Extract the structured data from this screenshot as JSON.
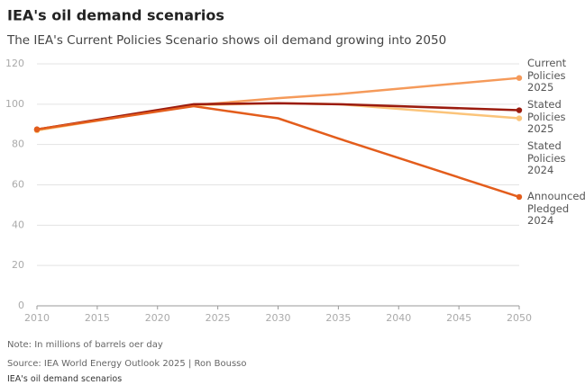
{
  "chart_data": {
    "type": "line",
    "title": "IEA's oil demand scenarios",
    "subtitle": "The IEA's Current Policies Scenario shows oil demand growing into 2050",
    "x": [
      2010,
      2023,
      2030,
      2035,
      2050
    ],
    "series": [
      {
        "name": "Current Policies 2025",
        "color": "#f59a5a",
        "values": [
          87.5,
          99.5,
          103,
          105,
          113
        ]
      },
      {
        "name": "Stated Policies 2025",
        "color": "#fbc47a",
        "values": [
          87,
          99.5,
          100.5,
          100,
          93
        ]
      },
      {
        "name": "Stated Policies 2024",
        "color": "#9b1b0e",
        "values": [
          87.5,
          100,
          100.5,
          100,
          97
        ]
      },
      {
        "name": "Announced Pledged 2024",
        "color": "#e35d1c",
        "values": [
          87.5,
          99,
          93,
          83,
          54
        ]
      }
    ],
    "xlim": [
      2010,
      2050
    ],
    "xticks": [
      2010,
      2015,
      2020,
      2025,
      2030,
      2035,
      2040,
      2045,
      2050
    ],
    "ylim": [
      0,
      120
    ],
    "yticks": [
      0,
      20,
      40,
      60,
      80,
      100,
      120
    ],
    "grid": true,
    "note": "Note: In millions of barrels oer day",
    "source": "Source: IEA World Energy Outlook 2025 | Ron Bousso",
    "caption": "IEA's oil demand scenarios"
  }
}
